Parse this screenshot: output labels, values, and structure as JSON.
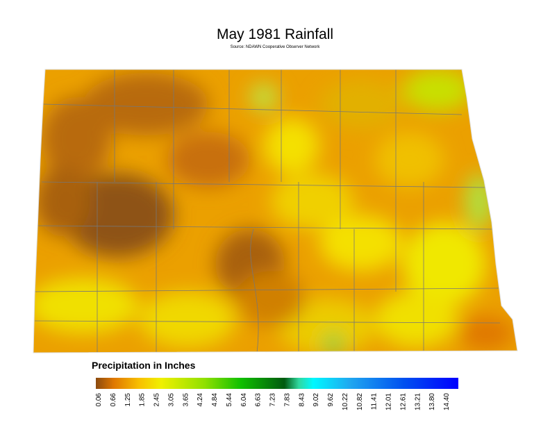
{
  "map": {
    "title": "May 1981 Rainfall",
    "source": "Source: NDAWN Cooperative Observer Network",
    "legend": {
      "title": "Precipitation in Inches",
      "labels": [
        "0.06",
        "0.66",
        "1.25",
        "1.85",
        "2.45",
        "3.05",
        "3.65",
        "4.24",
        "4.84",
        "5.44",
        "6.04",
        "6.63",
        "7.23",
        "7.83",
        "8.43",
        "9.02",
        "9.62",
        "10.22",
        "10.82",
        "11.41",
        "12.01",
        "12.61",
        "13.21",
        "13.80",
        "14.40"
      ]
    }
  }
}
